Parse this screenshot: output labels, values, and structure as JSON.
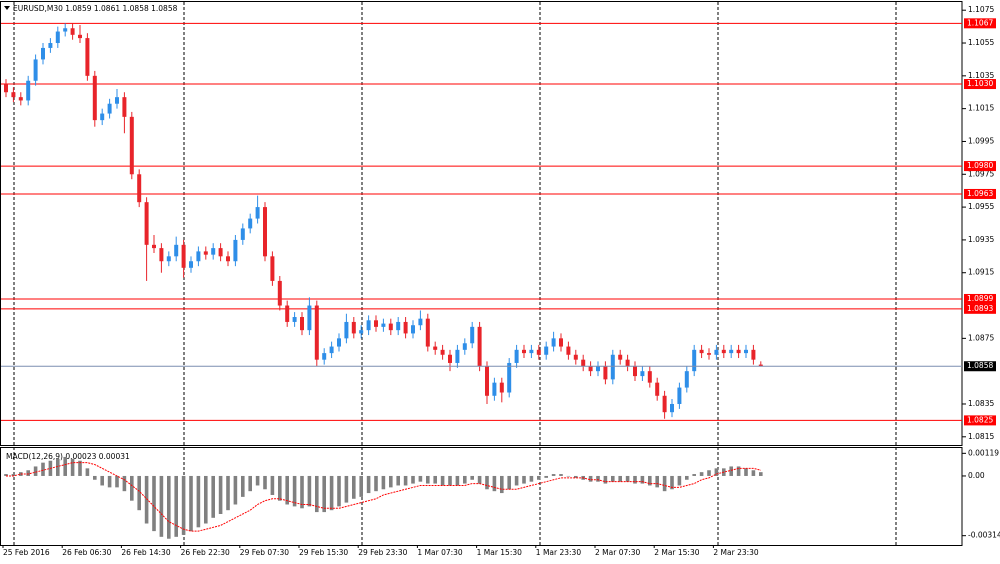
{
  "chart_data": {
    "type": "candlestick",
    "title": "EURUSD,M30  1.0859 1.0861 1.0858 1.0858",
    "up_color": "#2e8ee8",
    "down_color": "#e8242a",
    "ylim": [
      1.081,
      1.108
    ],
    "yticks": [
      1.1075,
      1.1055,
      1.1035,
      1.1015,
      1.0995,
      1.0975,
      1.0955,
      1.0935,
      1.0915,
      1.0875,
      1.0835,
      1.0815
    ],
    "levels": [
      1.1067,
      {
        "value": 1.103,
        "label": "1.1030"
      },
      {
        "value": 1.098,
        "label": "1.0980"
      },
      1.0963,
      1.0899,
      1.0893,
      1.0825
    ],
    "level_color": "#ff0000",
    "last_price": 1.0858,
    "xticks": [
      {
        "value": 0,
        "label": "25 Feb 2016"
      },
      {
        "value": 8,
        "label": "26 Feb 06:30"
      },
      {
        "value": 16,
        "label": "26 Feb 14:30"
      },
      {
        "value": 24,
        "label": "26 Feb 22:30"
      },
      {
        "value": 32,
        "label": "29 Feb 07:30"
      },
      {
        "value": 40,
        "label": "29 Feb 15:30"
      },
      {
        "value": 48,
        "label": "29 Feb 23:30"
      },
      {
        "value": 56,
        "label": "1 Mar 07:30"
      },
      {
        "value": 64,
        "label": "1 Mar 15:30"
      },
      {
        "value": 72,
        "label": "1 Mar 23:30"
      },
      {
        "value": 80,
        "label": "2 Mar 07:30"
      },
      {
        "value": 88,
        "label": "2 Mar 15:30"
      },
      {
        "value": 96,
        "label": "2 Mar 23:30"
      }
    ],
    "ohlc": [
      [
        1.103,
        1.1033,
        1.1022,
        1.1025
      ],
      [
        1.1025,
        1.1028,
        1.1019,
        1.1022
      ],
      [
        1.1022,
        1.1025,
        1.1017,
        1.102
      ],
      [
        1.102,
        1.1035,
        1.1017,
        1.1032
      ],
      [
        1.1032,
        1.1048,
        1.1029,
        1.1045
      ],
      [
        1.1045,
        1.1055,
        1.1042,
        1.1052
      ],
      [
        1.1052,
        1.1058,
        1.1049,
        1.1055
      ],
      [
        1.1055,
        1.1065,
        1.1052,
        1.1062
      ],
      [
        1.1062,
        1.1067,
        1.1059,
        1.1064
      ],
      [
        1.1064,
        1.1067,
        1.1057,
        1.106
      ],
      [
        1.106,
        1.1066,
        1.1055,
        1.1058
      ],
      [
        1.1058,
        1.1061,
        1.1032,
        1.1035
      ],
      [
        1.1035,
        1.1038,
        1.1004,
        1.1008
      ],
      [
        1.1008,
        1.1015,
        1.1005,
        1.1012
      ],
      [
        1.1012,
        1.1021,
        1.1009,
        1.1018
      ],
      [
        1.1018,
        1.1027,
        1.1015,
        1.1022
      ],
      [
        1.1022,
        1.1025,
        1.1,
        1.101
      ],
      [
        1.101,
        1.1013,
        1.0972,
        1.0975
      ],
      [
        1.0975,
        1.0978,
        1.0955,
        1.0958
      ],
      [
        1.0958,
        1.0961,
        1.091,
        1.0932
      ],
      [
        1.0932,
        1.0938,
        1.0927,
        1.093
      ],
      [
        1.093,
        1.0933,
        1.0915,
        1.0922
      ],
      [
        1.0922,
        1.0928,
        1.0919,
        1.0925
      ],
      [
        1.0925,
        1.0937,
        1.0922,
        1.0932
      ],
      [
        1.0932,
        1.0935,
        1.0912,
        1.0918
      ],
      [
        1.0918,
        1.0925,
        1.0915,
        1.0922
      ],
      [
        1.0922,
        1.0931,
        1.0919,
        1.0928
      ],
      [
        1.0928,
        1.0931,
        1.0923,
        1.0926
      ],
      [
        1.0926,
        1.0933,
        1.0923,
        1.093
      ],
      [
        1.093,
        1.0933,
        1.0922,
        1.0925
      ],
      [
        1.0925,
        1.0928,
        1.0919,
        1.0922
      ],
      [
        1.0922,
        1.0938,
        1.0919,
        1.0935
      ],
      [
        1.0935,
        1.0945,
        1.0932,
        1.0942
      ],
      [
        1.0942,
        1.0951,
        1.0939,
        1.0948
      ],
      [
        1.0948,
        1.0962,
        1.0945,
        1.0955
      ],
      [
        1.0955,
        1.0958,
        1.0922,
        1.0925
      ],
      [
        1.0925,
        1.0928,
        1.0907,
        1.091
      ],
      [
        1.091,
        1.0913,
        1.0892,
        1.0895
      ],
      [
        1.0895,
        1.0898,
        1.0882,
        1.0885
      ],
      [
        1.0885,
        1.0891,
        1.0882,
        1.0888
      ],
      [
        1.0888,
        1.0891,
        1.0877,
        1.088
      ],
      [
        1.088,
        1.09,
        1.0877,
        1.0895
      ],
      [
        1.0895,
        1.0898,
        1.0858,
        1.0862
      ],
      [
        1.0862,
        1.0869,
        1.0859,
        1.0866
      ],
      [
        1.0866,
        1.0873,
        1.0863,
        1.087
      ],
      [
        1.087,
        1.0878,
        1.0867,
        1.0875
      ],
      [
        1.0875,
        1.089,
        1.0872,
        1.0885
      ],
      [
        1.0885,
        1.0888,
        1.0875,
        1.0878
      ],
      [
        1.0878,
        1.0883,
        1.0875,
        1.088
      ],
      [
        1.088,
        1.0889,
        1.0877,
        1.0886
      ],
      [
        1.0886,
        1.0889,
        1.0879,
        1.0882
      ],
      [
        1.0882,
        1.0887,
        1.0879,
        1.0884
      ],
      [
        1.0884,
        1.0887,
        1.0877,
        1.088
      ],
      [
        1.088,
        1.0888,
        1.0877,
        1.0885
      ],
      [
        1.0885,
        1.0888,
        1.0875,
        1.0878
      ],
      [
        1.0878,
        1.0886,
        1.0875,
        1.0883
      ],
      [
        1.0883,
        1.0892,
        1.088,
        1.0887
      ],
      [
        1.0887,
        1.089,
        1.0867,
        1.087
      ],
      [
        1.087,
        1.0873,
        1.0865,
        1.0868
      ],
      [
        1.0868,
        1.0871,
        1.0862,
        1.0865
      ],
      [
        1.0865,
        1.0868,
        1.0855,
        1.086
      ],
      [
        1.086,
        1.0871,
        1.0857,
        1.0868
      ],
      [
        1.0868,
        1.0875,
        1.0865,
        1.0872
      ],
      [
        1.0872,
        1.0885,
        1.0869,
        1.0882
      ],
      [
        1.0882,
        1.0885,
        1.0855,
        1.0858
      ],
      [
        1.0858,
        1.0861,
        1.0835,
        1.084
      ],
      [
        1.084,
        1.0851,
        1.0837,
        1.0848
      ],
      [
        1.0848,
        1.0851,
        1.0836,
        1.0842
      ],
      [
        1.0842,
        1.0863,
        1.0839,
        1.086
      ],
      [
        1.086,
        1.0871,
        1.0857,
        1.0868
      ],
      [
        1.0868,
        1.0871,
        1.0863,
        1.0866
      ],
      [
        1.0866,
        1.0871,
        1.0863,
        1.0868
      ],
      [
        1.0868,
        1.0871,
        1.0862,
        1.0865
      ],
      [
        1.0865,
        1.0873,
        1.0862,
        1.087
      ],
      [
        1.087,
        1.0879,
        1.0867,
        1.0875
      ],
      [
        1.0875,
        1.0878,
        1.0867,
        1.087
      ],
      [
        1.087,
        1.0873,
        1.0862,
        1.0865
      ],
      [
        1.0865,
        1.0868,
        1.0859,
        1.0862
      ],
      [
        1.0862,
        1.0865,
        1.0855,
        1.0858
      ],
      [
        1.0858,
        1.0861,
        1.0852,
        1.0855
      ],
      [
        1.0855,
        1.0861,
        1.0852,
        1.0858
      ],
      [
        1.0858,
        1.0861,
        1.0847,
        1.085
      ],
      [
        1.085,
        1.0868,
        1.0847,
        1.0865
      ],
      [
        1.0865,
        1.0868,
        1.0859,
        1.0862
      ],
      [
        1.0862,
        1.0865,
        1.0855,
        1.0858
      ],
      [
        1.0858,
        1.0861,
        1.0849,
        1.0852
      ],
      [
        1.0852,
        1.0858,
        1.0849,
        1.0855
      ],
      [
        1.0855,
        1.0858,
        1.0845,
        1.0848
      ],
      [
        1.0848,
        1.0851,
        1.0837,
        1.084
      ],
      [
        1.084,
        1.0843,
        1.0826,
        1.083
      ],
      [
        1.083,
        1.0838,
        1.0827,
        1.0835
      ],
      [
        1.0835,
        1.0848,
        1.0832,
        1.0845
      ],
      [
        1.0845,
        1.0858,
        1.0842,
        1.0855
      ],
      [
        1.0855,
        1.0871,
        1.0852,
        1.0868
      ],
      [
        1.0868,
        1.0871,
        1.0863,
        1.0866
      ],
      [
        1.0866,
        1.0869,
        1.0862,
        1.0865
      ],
      [
        1.0865,
        1.0871,
        1.0862,
        1.0868
      ],
      [
        1.0868,
        1.0871,
        1.0863,
        1.0866
      ],
      [
        1.0866,
        1.0871,
        1.0863,
        1.0868
      ],
      [
        1.0868,
        1.0871,
        1.0863,
        1.0866
      ],
      [
        1.0866,
        1.0871,
        1.0863,
        1.0868
      ],
      [
        1.0868,
        1.0871,
        1.0859,
        1.0862
      ],
      [
        1.0859,
        1.0861,
        1.0858,
        1.0858
      ]
    ],
    "macd": {
      "label": "MACD(12,26,9) 0.00023 0.00031",
      "bar_color": "#808080",
      "signal_color": "#ff0000",
      "ylim": [
        -0.00363,
        0.00147
      ],
      "yticks": [
        0.00119,
        {
          "value": 0,
          "label": "0.00"
        },
        -0.00314
      ],
      "histogram": [
        0.0001,
        0.0001,
        0.0002,
        0.0003,
        0.0005,
        0.0007,
        0.0008,
        0.0009,
        0.001,
        0.0009,
        0.0008,
        0.0004,
        -0.0002,
        -0.0005,
        -0.0006,
        -0.0006,
        -0.0008,
        -0.0013,
        -0.0018,
        -0.0025,
        -0.0029,
        -0.0032,
        -0.0033,
        -0.0032,
        -0.0031,
        -0.0029,
        -0.0027,
        -0.0025,
        -0.0022,
        -0.002,
        -0.0018,
        -0.0015,
        -0.0011,
        -0.0008,
        -0.0005,
        -0.0007,
        -0.001,
        -0.0013,
        -0.0015,
        -0.0016,
        -0.0017,
        -0.0016,
        -0.0019,
        -0.0019,
        -0.0018,
        -0.0016,
        -0.0014,
        -0.0012,
        -0.0011,
        -0.0009,
        -0.0008,
        -0.0007,
        -0.0006,
        -0.0005,
        -0.0005,
        -0.0004,
        -0.0003,
        -0.0004,
        -0.0004,
        -0.0005,
        -0.0005,
        -0.0005,
        -0.0004,
        -0.0002,
        -0.0004,
        -0.0007,
        -0.0008,
        -0.0009,
        -0.0007,
        -0.0005,
        -0.0004,
        -0.0003,
        -0.0002,
        -0.0001,
        0.0001,
        0.0001,
        0.0,
        -0.0001,
        -0.0002,
        -0.0003,
        -0.0003,
        -0.0004,
        -0.0003,
        -0.0003,
        -0.0003,
        -0.0004,
        -0.0004,
        -0.0005,
        -0.0006,
        -0.0008,
        -0.0007,
        -0.0005,
        -0.0002,
        0.0001,
        0.0002,
        0.0003,
        0.0004,
        0.0004,
        0.0005,
        0.0005,
        0.0004,
        0.0003,
        0.0002
      ],
      "signal": [
        0.0,
        0.0,
        0.0001,
        0.0001,
        0.0002,
        0.0003,
        0.0004,
        0.0005,
        0.0006,
        0.0007,
        0.0007,
        0.0007,
        0.0006,
        0.0004,
        0.0002,
        0.0,
        -0.0002,
        -0.0005,
        -0.0008,
        -0.0012,
        -0.0016,
        -0.002,
        -0.0024,
        -0.0026,
        -0.0028,
        -0.0029,
        -0.0029,
        -0.0028,
        -0.0027,
        -0.0026,
        -0.0024,
        -0.0022,
        -0.002,
        -0.0018,
        -0.0015,
        -0.0013,
        -0.0012,
        -0.0012,
        -0.0013,
        -0.0014,
        -0.0015,
        -0.0015,
        -0.0016,
        -0.0017,
        -0.0017,
        -0.0017,
        -0.0016,
        -0.0015,
        -0.0014,
        -0.0013,
        -0.0012,
        -0.001,
        -0.0009,
        -0.0008,
        -0.0007,
        -0.0006,
        -0.0005,
        -0.0005,
        -0.0005,
        -0.0005,
        -0.0005,
        -0.0005,
        -0.0005,
        -0.0004,
        -0.0004,
        -0.0005,
        -0.0006,
        -0.0007,
        -0.0007,
        -0.0007,
        -0.0006,
        -0.0005,
        -0.0004,
        -0.0003,
        -0.0002,
        -0.0001,
        -0.0001,
        -0.0001,
        -0.0001,
        -0.0002,
        -0.0002,
        -0.0003,
        -0.0003,
        -0.0003,
        -0.0003,
        -0.0003,
        -0.0003,
        -0.0004,
        -0.0004,
        -0.0005,
        -0.0006,
        -0.0006,
        -0.0005,
        -0.0004,
        -0.0002,
        -0.0001,
        0.0001,
        0.0002,
        0.0003,
        0.0004,
        0.0004,
        0.0004,
        0.0003
      ]
    }
  }
}
